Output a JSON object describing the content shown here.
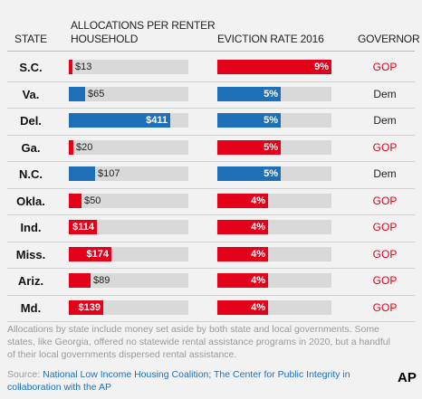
{
  "headers": {
    "state": "STATE",
    "allocations_line1": "ALLOCATIONS PER RENTER",
    "allocations_line2": "HOUSEHOLD",
    "eviction": "EVICTION RATE 2016",
    "governor": "GOVERNOR"
  },
  "colors": {
    "gop": "#e5001a",
    "dem": "#1d6fb8",
    "track": "#d9d9d9"
  },
  "chart_data": {
    "type": "table",
    "columns": [
      "STATE",
      "ALLOCATIONS PER RENTER HOUSEHOLD",
      "EVICTION RATE 2016",
      "GOVERNOR"
    ],
    "allocation_max": 411,
    "eviction_max": 9,
    "rows": [
      {
        "state": "S.C.",
        "allocation": 13,
        "allocation_label": "$13",
        "eviction": 9,
        "eviction_label": "9%",
        "governor": "GOP"
      },
      {
        "state": "Va.",
        "allocation": 65,
        "allocation_label": "$65",
        "eviction": 5,
        "eviction_label": "5%",
        "governor": "Dem"
      },
      {
        "state": "Del.",
        "allocation": 411,
        "allocation_label": "$411",
        "eviction": 5,
        "eviction_label": "5%",
        "governor": "Dem"
      },
      {
        "state": "Ga.",
        "allocation": 20,
        "allocation_label": "$20",
        "eviction": 5,
        "eviction_label": "5%",
        "governor": "GOP"
      },
      {
        "state": "N.C.",
        "allocation": 107,
        "allocation_label": "$107",
        "eviction": 5,
        "eviction_label": "5%",
        "governor": "Dem"
      },
      {
        "state": "Okla.",
        "allocation": 50,
        "allocation_label": "$50",
        "eviction": 4,
        "eviction_label": "4%",
        "governor": "GOP"
      },
      {
        "state": "Ind.",
        "allocation": 114,
        "allocation_label": "$114",
        "eviction": 4,
        "eviction_label": "4%",
        "governor": "GOP"
      },
      {
        "state": "Miss.",
        "allocation": 174,
        "allocation_label": "$174",
        "eviction": 4,
        "eviction_label": "4%",
        "governor": "GOP"
      },
      {
        "state": "Ariz.",
        "allocation": 89,
        "allocation_label": "$89",
        "eviction": 4,
        "eviction_label": "4%",
        "governor": "GOP"
      },
      {
        "state": "Md.",
        "allocation": 139,
        "allocation_label": "$139",
        "eviction": 4,
        "eviction_label": "4%",
        "governor": "GOP"
      }
    ]
  },
  "footnote": "Allocations by state include money set aside by both state and local governments. Some states, like Georgia, offered no statewide rental assistance programs in 2020, but a handful of their local governments dispersed rental assistance.",
  "source_prefix": "Source: ",
  "source_names": "National Low Income Housing Coalition; The Center for Public Integrity in collaboration with the AP",
  "logo_text": "AP"
}
